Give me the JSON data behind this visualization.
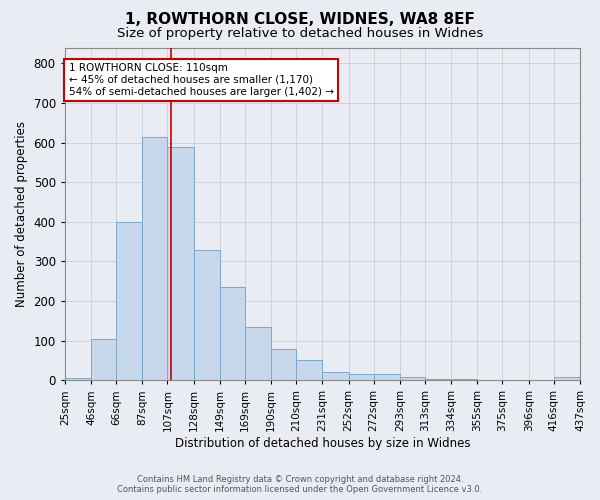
{
  "title": "1, ROWTHORN CLOSE, WIDNES, WA8 8EF",
  "subtitle": "Size of property relative to detached houses in Widnes",
  "xlabel": "Distribution of detached houses by size in Widnes",
  "ylabel": "Number of detached properties",
  "bar_color": "#c8d8ec",
  "bar_edge_color": "#7aa8cc",
  "bin_labels": [
    "25sqm",
    "46sqm",
    "66sqm",
    "87sqm",
    "107sqm",
    "128sqm",
    "149sqm",
    "169sqm",
    "190sqm",
    "210sqm",
    "231sqm",
    "252sqm",
    "272sqm",
    "293sqm",
    "313sqm",
    "334sqm",
    "355sqm",
    "375sqm",
    "396sqm",
    "416sqm",
    "437sqm"
  ],
  "bin_edges": [
    25,
    46,
    66,
    87,
    107,
    128,
    149,
    169,
    190,
    210,
    231,
    252,
    272,
    293,
    313,
    334,
    355,
    375,
    396,
    416,
    437
  ],
  "bar_heights": [
    7,
    105,
    400,
    615,
    590,
    330,
    235,
    135,
    78,
    50,
    22,
    15,
    17,
    8,
    3,
    2,
    0,
    0,
    0,
    8
  ],
  "property_size": 110,
  "red_line_color": "#cc0000",
  "annotation_line1": "1 ROWTHORN CLOSE: 110sqm",
  "annotation_line2": "← 45% of detached houses are smaller (1,170)",
  "annotation_line3": "54% of semi-detached houses are larger (1,402) →",
  "annotation_box_color": "#ffffff",
  "annotation_box_edge": "#cc0000",
  "ylim": [
    0,
    840
  ],
  "grid_color": "#c8d0dc",
  "background_color": "#eaecf4",
  "footer_line1": "Contains HM Land Registry data © Crown copyright and database right 2024.",
  "footer_line2": "Contains public sector information licensed under the Open Government Licence v3.0.",
  "title_fontsize": 11,
  "subtitle_fontsize": 9.5,
  "tick_fontsize": 7.5,
  "ylabel_fontsize": 8.5,
  "xlabel_fontsize": 8.5
}
